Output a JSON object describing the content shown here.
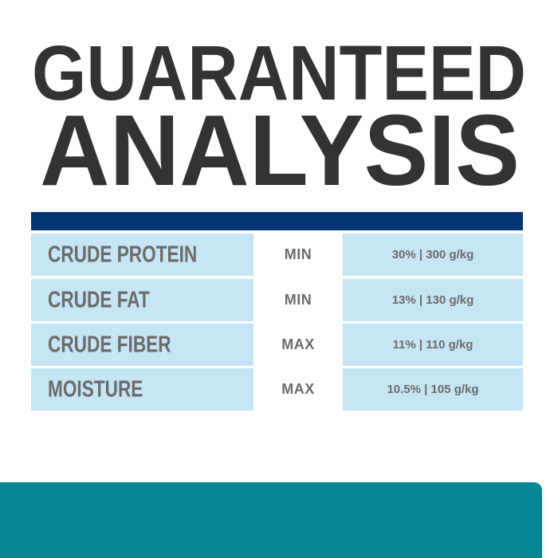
{
  "title": {
    "line1": "GUARANTEED",
    "line2": "ANALYSIS"
  },
  "colors": {
    "header_bar": "#023572",
    "cell_bg": "#c6e5f5",
    "text": "#6b6b6b",
    "title": "#333333",
    "footer": "#058896"
  },
  "table": {
    "rows": [
      {
        "nutrient": "CRUDE PROTEIN",
        "limit": "MIN",
        "value": "30% | 300 g/kg"
      },
      {
        "nutrient": "CRUDE FAT",
        "limit": "MIN",
        "value": "13% | 130 g/kg"
      },
      {
        "nutrient": "CRUDE FIBER",
        "limit": "MAX",
        "value": "11% | 110 g/kg"
      },
      {
        "nutrient": "MOISTURE",
        "limit": "MAX",
        "value": "10.5% | 105 g/kg"
      }
    ]
  }
}
